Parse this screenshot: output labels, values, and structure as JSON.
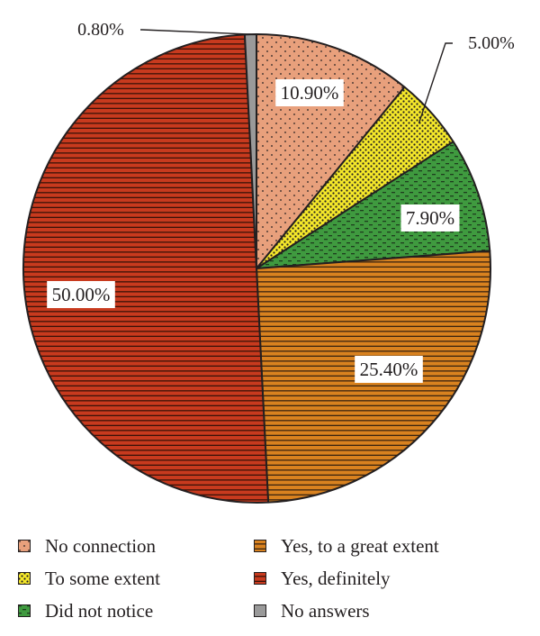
{
  "chart_data": {
    "type": "pie",
    "slices": [
      {
        "name": "No connection",
        "value": 10.9,
        "label": "10.90%",
        "color": "#e8a07c",
        "pattern": "dots"
      },
      {
        "name": "To some extent",
        "value": 5.0,
        "label": "5.00%",
        "color": "#f5e82a",
        "pattern": "dots-dense"
      },
      {
        "name": "Did not notice",
        "value": 7.9,
        "label": "7.90%",
        "color": "#3f9a3f",
        "pattern": "dashes"
      },
      {
        "name": "Yes, to a great extent",
        "value": 25.4,
        "label": "25.40%",
        "color": "#d9821f",
        "pattern": "hlines"
      },
      {
        "name": "Yes, definitely",
        "value": 50.0,
        "label": "50.00%",
        "color": "#c83a1e",
        "pattern": "hlines"
      },
      {
        "name": "No answers",
        "value": 0.8,
        "label": "0.80%",
        "color": "#9a9a9a",
        "pattern": "solid"
      }
    ]
  },
  "legend": {
    "items": [
      {
        "label": "No connection",
        "color": "#e8a07c",
        "pattern": "dots"
      },
      {
        "label": "Yes, to a great extent",
        "color": "#d9821f",
        "pattern": "hlines"
      },
      {
        "label": "To some extent",
        "color": "#f5e82a",
        "pattern": "dots-dense"
      },
      {
        "label": "Yes, definitely",
        "color": "#c83a1e",
        "pattern": "hlines"
      },
      {
        "label": "Did not notice",
        "color": "#3f9a3f",
        "pattern": "dashes"
      },
      {
        "label": "No answers",
        "color": "#9a9a9a",
        "pattern": "solid"
      }
    ]
  }
}
